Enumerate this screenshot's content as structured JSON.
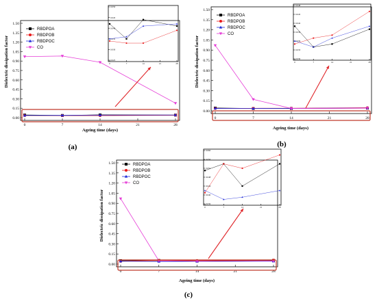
{
  "figure": {
    "panel_labels": [
      "(a)",
      "(b)",
      "(c)"
    ],
    "colors": {
      "RBDPOA": "#000000",
      "RBDPOB": "#e8191a",
      "RBDPOC": "#1f2ad8",
      "CO": "#e53bd6",
      "highlight": "#c0392b",
      "arrow": "#e0262a"
    }
  },
  "chart_data": [
    {
      "type": "line",
      "panel": "(a)",
      "xlabel": "Ageing time (days)",
      "ylabel": "Dielectric dissipation factor",
      "x": [
        0,
        7,
        14,
        21,
        28
      ],
      "xticks": [
        0,
        7,
        14,
        21,
        28
      ],
      "ylim": [
        0,
        1.5
      ],
      "yticks": [
        0.0,
        0.15,
        0.3,
        0.45,
        0.6,
        0.75,
        0.9,
        1.05,
        1.2,
        1.35,
        1.5
      ],
      "legend": "top-left",
      "series": [
        {
          "name": "RBDPOA",
          "marker": "square",
          "x": [
            0,
            7,
            14,
            28
          ],
          "values": [
            0.042,
            0.035,
            0.044,
            0.041
          ]
        },
        {
          "name": "RBDPOB",
          "marker": "circle",
          "x": [
            0,
            7,
            14,
            28
          ],
          "values": [
            0.034,
            0.033,
            0.033,
            0.039
          ]
        },
        {
          "name": "RBDPOC",
          "marker": "triangle-up",
          "x": [
            0,
            7,
            14,
            28
          ],
          "values": [
            0.035,
            0.036,
            0.041,
            0.042
          ]
        },
        {
          "name": "CO",
          "marker": "triangle-down",
          "x": [
            0,
            7,
            14,
            28
          ],
          "values": [
            0.97,
            0.98,
            0.88,
            0.23
          ]
        }
      ],
      "inset": {
        "ylim": [
          0.025,
          0.05
        ],
        "yticks": [
          0.025,
          0.03,
          0.035,
          0.04,
          0.045,
          0.05
        ],
        "xticks": [
          0,
          7,
          14,
          21,
          28
        ],
        "series_names": [
          "RBDPOA",
          "RBDPOB",
          "RBDPOC"
        ]
      }
    },
    {
      "type": "line",
      "panel": "(b)",
      "xlabel": "Ageing time (days)",
      "ylabel": "Dielectric dissipation factor",
      "x": [
        0,
        7,
        14,
        21,
        28
      ],
      "xticks": [
        0,
        7,
        14,
        21,
        28
      ],
      "ylim": [
        0,
        1.5
      ],
      "yticks": [
        0.0,
        0.15,
        0.3,
        0.45,
        0.6,
        0.75,
        0.9,
        1.05,
        1.2,
        1.35,
        1.5
      ],
      "legend": "top-left",
      "series": [
        {
          "name": "RBDPOA",
          "marker": "square",
          "x": [
            0,
            7,
            14,
            28
          ],
          "values": [
            0.041,
            0.034,
            0.035,
            0.04
          ]
        },
        {
          "name": "RBDPOB",
          "marker": "circle",
          "x": [
            0,
            7,
            14,
            28
          ],
          "values": [
            0.035,
            0.037,
            0.038,
            0.046
          ]
        },
        {
          "name": "RBDPOC",
          "marker": "triangle-up",
          "x": [
            0,
            7,
            14,
            28
          ],
          "values": [
            0.036,
            0.034,
            0.037,
            0.041
          ]
        },
        {
          "name": "CO",
          "marker": "triangle-down",
          "x": [
            0,
            7,
            14,
            28
          ],
          "values": [
            0.97,
            0.17,
            0.035,
            0.04
          ]
        }
      ],
      "inset": {
        "ylim": [
          0.03,
          0.048
        ],
        "yticks": [
          0.03,
          0.033,
          0.036,
          0.039,
          0.042,
          0.045,
          0.048
        ],
        "xticks": [
          0,
          7,
          14,
          21,
          28
        ],
        "series_names": [
          "RBDPOA",
          "RBDPOB",
          "RBDPOC"
        ]
      }
    },
    {
      "type": "line",
      "panel": "(c)",
      "xlabel": "Ageing time (days)",
      "ylabel": "Dielectric dissipation factor",
      "x": [
        0,
        7,
        14,
        21,
        28
      ],
      "xticks": [
        0,
        7,
        14,
        21,
        28
      ],
      "ylim": [
        0,
        1.5
      ],
      "yticks": [
        0.0,
        0.15,
        0.3,
        0.45,
        0.6,
        0.75,
        0.9,
        1.05,
        1.2,
        1.35,
        1.5
      ],
      "legend": "top-left",
      "series": [
        {
          "name": "RBDPOA",
          "marker": "square",
          "x": [
            0,
            7,
            14,
            28
          ],
          "values": [
            0.051,
            0.054,
            0.044,
            0.054
          ]
        },
        {
          "name": "RBDPOB",
          "marker": "circle",
          "x": [
            0,
            7,
            14,
            28
          ],
          "values": [
            0.041,
            0.054,
            0.052,
            0.058
          ]
        },
        {
          "name": "RBDPOC",
          "marker": "triangle-up",
          "x": [
            0,
            7,
            14,
            28
          ],
          "values": [
            0.042,
            0.038,
            0.039,
            0.042
          ]
        },
        {
          "name": "CO",
          "marker": "triangle-down",
          "x": [
            0,
            7,
            14,
            28
          ],
          "values": [
            0.97,
            0.048,
            0.042,
            0.046
          ]
        }
      ],
      "inset": {
        "ylim": [
          0.036,
          0.06
        ],
        "yticks": [
          0.036,
          0.04,
          0.044,
          0.048,
          0.052,
          0.056,
          0.06
        ],
        "xticks": [
          0,
          7,
          14,
          21,
          28
        ],
        "series_names": [
          "RBDPOA",
          "RBDPOB",
          "RBDPOC"
        ]
      }
    }
  ]
}
